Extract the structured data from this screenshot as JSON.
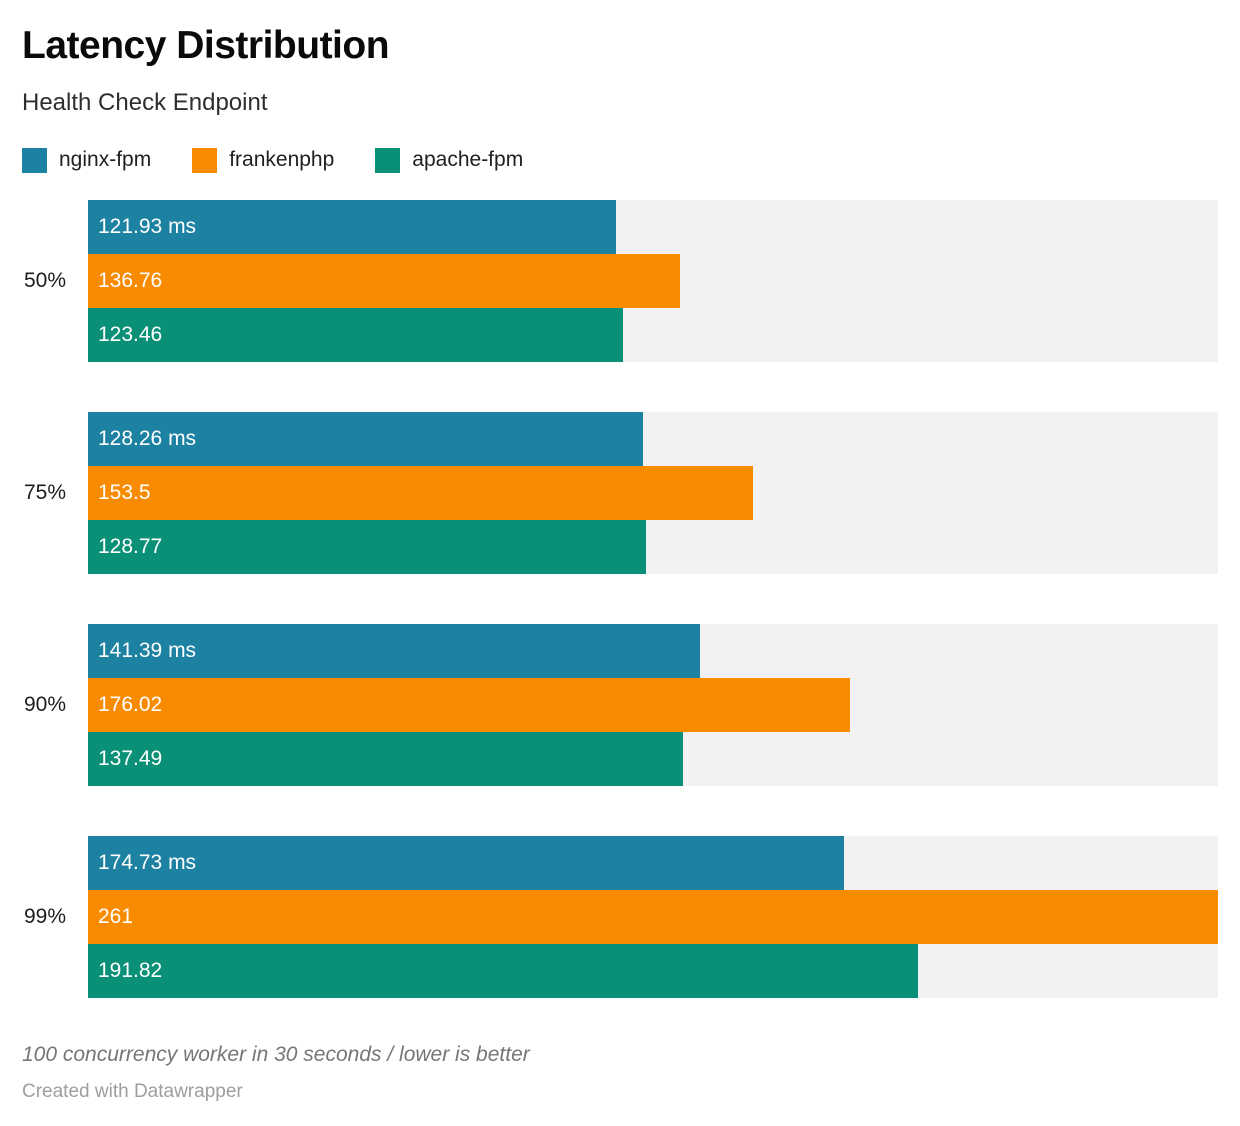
{
  "header": {
    "title": "Latency Distribution",
    "subtitle": "Health Check Endpoint"
  },
  "legend": [
    {
      "label": "nginx-fpm",
      "color": "#1d81a2"
    },
    {
      "label": "frankenphp",
      "color": "#f98b00"
    },
    {
      "label": "apache-fpm",
      "color": "#0a9076"
    }
  ],
  "chart_data": {
    "type": "bar",
    "orientation": "horizontal",
    "title": "Latency Distribution",
    "subtitle": "Health Check Endpoint",
    "unit": "ms",
    "categories": [
      "50%",
      "75%",
      "90%",
      "99%"
    ],
    "series": [
      {
        "name": "nginx-fpm",
        "color": "#1d81a2",
        "values": [
          121.93,
          128.26,
          141.39,
          174.73
        ],
        "value_labels": [
          "121.93 ms",
          "128.26 ms",
          "141.39 ms",
          "174.73 ms"
        ]
      },
      {
        "name": "frankenphp",
        "color": "#f98b00",
        "values": [
          136.76,
          153.5,
          176.02,
          261
        ],
        "value_labels": [
          "136.76",
          "153.5",
          "176.02",
          "261"
        ]
      },
      {
        "name": "apache-fpm",
        "color": "#0a9076",
        "values": [
          123.46,
          128.77,
          137.49,
          191.82
        ],
        "value_labels": [
          "123.46",
          "128.77",
          "137.49",
          "191.82"
        ]
      }
    ],
    "x_max": 261,
    "grid": false,
    "legend_position": "top",
    "track_color": "#f2f2f2"
  },
  "footer": {
    "note": "100 concurrency worker in 30 seconds / lower is better",
    "credit": "Created with Datawrapper"
  }
}
